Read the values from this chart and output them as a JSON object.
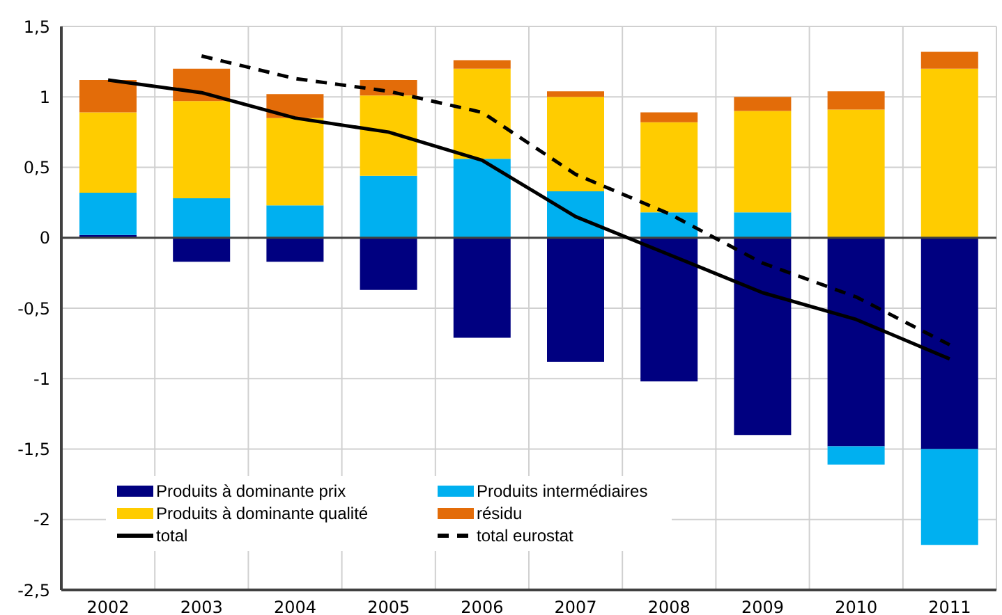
{
  "chart_data": {
    "type": "bar",
    "stacked": true,
    "categories": [
      "2002",
      "2003",
      "2004",
      "2005",
      "2006",
      "2007",
      "2008",
      "2009",
      "2010",
      "2011"
    ],
    "series": [
      {
        "name": "Produits à dominante prix",
        "color": "#000080",
        "values": [
          0.02,
          -0.17,
          -0.17,
          -0.37,
          -0.71,
          -0.88,
          -1.02,
          -1.4,
          -1.48,
          -1.5
        ]
      },
      {
        "name": "Produits intermédiaires",
        "color": "#00b0f0",
        "values": [
          0.3,
          0.28,
          0.23,
          0.44,
          0.56,
          0.33,
          0.18,
          0.18,
          -0.13,
          -0.68
        ]
      },
      {
        "name": "Produits à dominante qualité",
        "color": "#ffcc00",
        "values": [
          0.57,
          0.69,
          0.62,
          0.57,
          0.64,
          0.67,
          0.64,
          0.72,
          0.91,
          1.2
        ]
      },
      {
        "name": "résidu",
        "color": "#e36c09",
        "values": [
          0.23,
          0.23,
          0.17,
          0.11,
          0.06,
          0.04,
          0.07,
          0.1,
          0.13,
          0.12
        ]
      },
      {
        "name": "total",
        "type": "line",
        "color": "#000000",
        "line_style": "solid",
        "values": [
          1.12,
          1.03,
          0.85,
          0.75,
          0.55,
          0.15,
          -0.12,
          -0.39,
          -0.58,
          -0.86
        ]
      },
      {
        "name": "total eurostat",
        "type": "line",
        "color": "#000000",
        "line_style": "dashed",
        "values": [
          null,
          1.29,
          1.13,
          1.04,
          0.89,
          0.45,
          0.17,
          -0.18,
          -0.42,
          -0.76
        ]
      }
    ],
    "ylim": [
      -2.5,
      1.5
    ],
    "yticks": [
      {
        "value": -2.5,
        "label": "-2,5"
      },
      -2,
      {
        "value": -1.5,
        "label": "-1,5"
      },
      -1,
      {
        "value": -0.5,
        "label": "-0,5"
      },
      0,
      {
        "value": 0.5,
        "label": "0,5"
      },
      1,
      {
        "value": 1.5,
        "label": "1,5"
      }
    ],
    "ref_lines": [
      {
        "axis": "y",
        "value": 0,
        "color": "#404040"
      }
    ],
    "grid": true,
    "legend": "bottom left",
    "marker": "none"
  }
}
